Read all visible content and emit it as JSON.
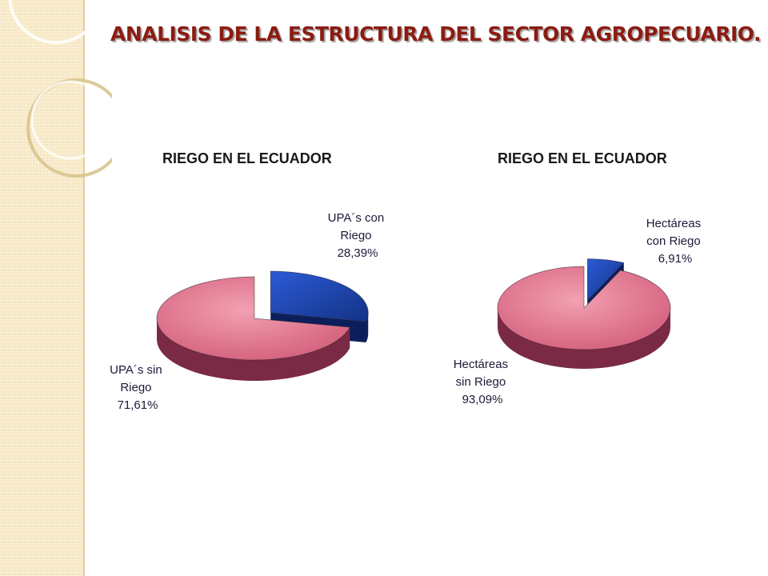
{
  "slide": {
    "title": "ANALISIS  DE LA ESTRUCTURA DEL SECTOR AGROPECUARIO."
  },
  "colors": {
    "title": "#8b1c12",
    "panel": "#f6e7c2",
    "pink_top": "#e0738e",
    "pink_side": "#7a2a44",
    "blue_top": "#1c3fa3",
    "blue_side": "#0c1f5c"
  },
  "chart_data": [
    {
      "type": "pie",
      "title": "RIEGO EN EL ECUADOR",
      "slices": [
        {
          "label_lines": [
            "UPA´s con",
            "Riego",
            "28,39%"
          ],
          "value": 28.39,
          "exploded": true,
          "color": "#1c3fa3"
        },
        {
          "label_lines": [
            "UPA´s sin",
            "Riego",
            "71,61%"
          ],
          "value": 71.61,
          "exploded": false,
          "color": "#e0738e"
        }
      ]
    },
    {
      "type": "pie",
      "title": "RIEGO EN EL ECUADOR",
      "slices": [
        {
          "label_lines": [
            "Hectáreas",
            "con Riego",
            "6,91%"
          ],
          "value": 6.91,
          "exploded": true,
          "color": "#1c3fa3"
        },
        {
          "label_lines": [
            "Hectáreas",
            "sin Riego",
            "93,09%"
          ],
          "value": 93.09,
          "exploded": false,
          "color": "#e0738e"
        }
      ]
    }
  ]
}
